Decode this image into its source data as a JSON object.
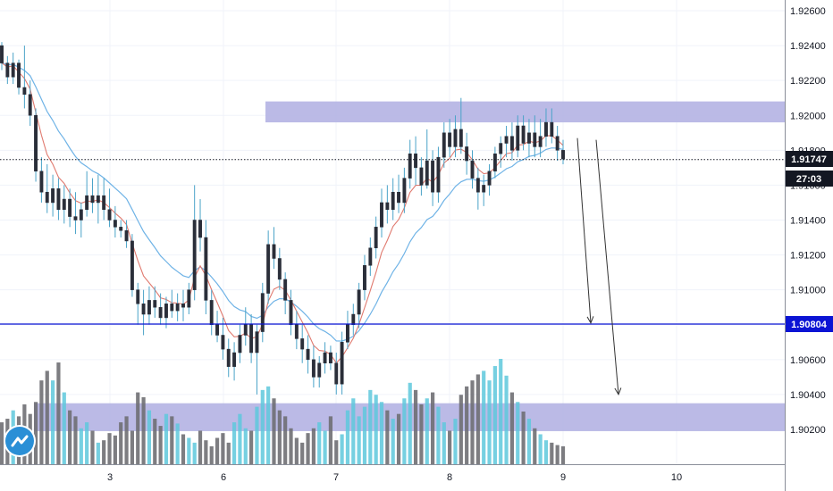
{
  "chart_data": {
    "type": "candlestick",
    "y_axis": {
      "ticks": [
        "1.92600",
        "1.92400",
        "1.92200",
        "1.92000",
        "1.91800",
        "1.91600",
        "1.91400",
        "1.91200",
        "1.91000",
        "1.90800",
        "1.90600",
        "1.90400",
        "1.90200"
      ],
      "range": [
        1.9001,
        1.9273
      ]
    },
    "x_axis": {
      "ticks": [
        "3",
        "6",
        "7",
        "8",
        "9",
        "10"
      ]
    },
    "price_marker": {
      "value": "1.91747",
      "countdown": "27:03",
      "color": "#131722"
    },
    "level_marker": {
      "value": "1.90804",
      "color": "#0b14d4"
    },
    "zones": [
      {
        "from": 1.9196,
        "to": 1.9208,
        "start": "8",
        "color": "#b4b3e3"
      },
      {
        "from": 1.9019,
        "to": 1.9035,
        "start": "2",
        "color": "#b4b3e3"
      }
    ],
    "ohlc": [
      [
        1.924,
        1.9242,
        1.9226,
        1.923
      ],
      [
        1.923,
        1.9234,
        1.9218,
        1.9222
      ],
      [
        1.9222,
        1.9236,
        1.9218,
        1.923
      ],
      [
        1.923,
        1.9232,
        1.9212,
        1.9216
      ],
      [
        1.9216,
        1.924,
        1.9204,
        1.9212
      ],
      [
        1.9212,
        1.922,
        1.9194,
        1.92
      ],
      [
        1.92,
        1.9204,
        1.9162,
        1.9168
      ],
      [
        1.9168,
        1.9176,
        1.915,
        1.9156
      ],
      [
        1.9156,
        1.9172,
        1.9144,
        1.915
      ],
      [
        1.915,
        1.9166,
        1.9142,
        1.9158
      ],
      [
        1.9158,
        1.9164,
        1.914,
        1.9146
      ],
      [
        1.9146,
        1.916,
        1.9138,
        1.9152
      ],
      [
        1.9152,
        1.9158,
        1.9136,
        1.9142
      ],
      [
        1.9142,
        1.9156,
        1.9132,
        1.914
      ],
      [
        1.914,
        1.915,
        1.913,
        1.9146
      ],
      [
        1.9146,
        1.9168,
        1.9142,
        1.9154
      ],
      [
        1.9154,
        1.9164,
        1.9144,
        1.915
      ],
      [
        1.915,
        1.9166,
        1.9138,
        1.9154
      ],
      [
        1.9154,
        1.9164,
        1.914,
        1.9146
      ],
      [
        1.9146,
        1.9158,
        1.9136,
        1.914
      ],
      [
        1.914,
        1.9148,
        1.913,
        1.9136
      ],
      [
        1.9136,
        1.914,
        1.913,
        1.9134
      ],
      [
        1.9134,
        1.914,
        1.9124,
        1.9128
      ],
      [
        1.9128,
        1.9132,
        1.9096,
        1.91
      ],
      [
        1.91,
        1.9104,
        1.908,
        1.9092
      ],
      [
        1.9092,
        1.91,
        1.9074,
        1.9086
      ],
      [
        1.9086,
        1.9102,
        1.908,
        1.9094
      ],
      [
        1.9094,
        1.9102,
        1.9084,
        1.909
      ],
      [
        1.909,
        1.9098,
        1.908,
        1.9084
      ],
      [
        1.9084,
        1.9096,
        1.9078,
        1.9092
      ],
      [
        1.9092,
        1.91,
        1.9084,
        1.9088
      ],
      [
        1.9088,
        1.9098,
        1.9082,
        1.9092
      ],
      [
        1.9092,
        1.91,
        1.9082,
        1.909
      ],
      [
        1.909,
        1.9104,
        1.9086,
        1.91
      ],
      [
        1.91,
        1.916,
        1.9094,
        1.914
      ],
      [
        1.914,
        1.9152,
        1.9122,
        1.913
      ],
      [
        1.913,
        1.914,
        1.9086,
        1.9094
      ],
      [
        1.9094,
        1.91,
        1.9074,
        1.908
      ],
      [
        1.908,
        1.9088,
        1.907,
        1.9074
      ],
      [
        1.9074,
        1.9084,
        1.906,
        1.9066
      ],
      [
        1.9066,
        1.9072,
        1.905,
        1.9056
      ],
      [
        1.9056,
        1.907,
        1.9048,
        1.9064
      ],
      [
        1.9064,
        1.908,
        1.9058,
        1.9074
      ],
      [
        1.9074,
        1.909,
        1.9068,
        1.908
      ],
      [
        1.908,
        1.9086,
        1.9058,
        1.9064
      ],
      [
        1.9064,
        1.908,
        1.904,
        1.9076
      ],
      [
        1.9076,
        1.9104,
        1.907,
        1.9098
      ],
      [
        1.9098,
        1.9134,
        1.9092,
        1.9126
      ],
      [
        1.9126,
        1.9136,
        1.9112,
        1.9118
      ],
      [
        1.9118,
        1.9124,
        1.91,
        1.9106
      ],
      [
        1.9106,
        1.911,
        1.9086,
        1.9094
      ],
      [
        1.9094,
        1.91,
        1.9074,
        1.908
      ],
      [
        1.908,
        1.9088,
        1.9066,
        1.9072
      ],
      [
        1.9072,
        1.908,
        1.9058,
        1.9066
      ],
      [
        1.9066,
        1.9074,
        1.9052,
        1.906
      ],
      [
        1.906,
        1.9068,
        1.9044,
        1.905
      ],
      [
        1.905,
        1.9062,
        1.9044,
        1.9058
      ],
      [
        1.9058,
        1.907,
        1.9052,
        1.9064
      ],
      [
        1.9064,
        1.9068,
        1.9054,
        1.9058
      ],
      [
        1.9058,
        1.9064,
        1.904,
        1.9046
      ],
      [
        1.9046,
        1.9076,
        1.904,
        1.907
      ],
      [
        1.907,
        1.9088,
        1.9066,
        1.908
      ],
      [
        1.908,
        1.9092,
        1.9074,
        1.9086
      ],
      [
        1.9086,
        1.9104,
        1.9078,
        1.91
      ],
      [
        1.91,
        1.912,
        1.9094,
        1.9114
      ],
      [
        1.9114,
        1.913,
        1.9108,
        1.9124
      ],
      [
        1.9124,
        1.9142,
        1.9118,
        1.9136
      ],
      [
        1.9136,
        1.9158,
        1.913,
        1.915
      ],
      [
        1.915,
        1.916,
        1.9138,
        1.9146
      ],
      [
        1.9146,
        1.9164,
        1.914,
        1.9156
      ],
      [
        1.9156,
        1.9166,
        1.9144,
        1.915
      ],
      [
        1.915,
        1.917,
        1.9144,
        1.9164
      ],
      [
        1.9164,
        1.9186,
        1.9158,
        1.9178
      ],
      [
        1.9178,
        1.9188,
        1.916,
        1.917
      ],
      [
        1.917,
        1.9176,
        1.9154,
        1.916
      ],
      [
        1.916,
        1.9192,
        1.9158,
        1.9174
      ],
      [
        1.9174,
        1.918,
        1.9148,
        1.9156
      ],
      [
        1.9156,
        1.9182,
        1.915,
        1.9176
      ],
      [
        1.9176,
        1.9196,
        1.917,
        1.919
      ],
      [
        1.919,
        1.9198,
        1.9176,
        1.9182
      ],
      [
        1.9182,
        1.92,
        1.9176,
        1.9192
      ],
      [
        1.9192,
        1.921,
        1.9178,
        1.9182
      ],
      [
        1.9182,
        1.919,
        1.9166,
        1.9174
      ],
      [
        1.9174,
        1.918,
        1.9158,
        1.9164
      ],
      [
        1.9164,
        1.917,
        1.9146,
        1.9156
      ],
      [
        1.9156,
        1.9166,
        1.9148,
        1.916
      ],
      [
        1.916,
        1.9172,
        1.9154,
        1.9168
      ],
      [
        1.9168,
        1.9182,
        1.9164,
        1.9178
      ],
      [
        1.9178,
        1.9188,
        1.917,
        1.9184
      ],
      [
        1.9184,
        1.9194,
        1.9176,
        1.9188
      ],
      [
        1.9188,
        1.9196,
        1.9174,
        1.918
      ],
      [
        1.918,
        1.92,
        1.9176,
        1.9194
      ],
      [
        1.9194,
        1.92,
        1.918,
        1.9184
      ],
      [
        1.9184,
        1.9198,
        1.9176,
        1.919
      ],
      [
        1.919,
        1.92,
        1.9176,
        1.9182
      ],
      [
        1.9182,
        1.9198,
        1.9176,
        1.9188
      ],
      [
        1.9188,
        1.9204,
        1.9182,
        1.9196
      ],
      [
        1.9196,
        1.9204,
        1.9184,
        1.9188
      ],
      [
        1.9188,
        1.9194,
        1.9174,
        1.918
      ],
      [
        1.918,
        1.9186,
        1.9172,
        1.9175
      ]
    ],
    "volume": [
      35,
      38,
      45,
      40,
      50,
      42,
      52,
      70,
      78,
      70,
      85,
      60,
      45,
      40,
      30,
      35,
      28,
      18,
      20,
      26,
      24,
      35,
      40,
      28,
      60,
      56,
      45,
      38,
      32,
      42,
      40,
      34,
      25,
      22,
      18,
      28,
      20,
      15,
      22,
      26,
      18,
      35,
      42,
      30,
      28,
      48,
      62,
      65,
      55,
      45,
      40,
      30,
      22,
      18,
      26,
      30,
      35,
      28,
      40,
      20,
      25,
      45,
      55,
      40,
      48,
      62,
      58,
      52,
      45,
      38,
      42,
      55,
      68,
      62,
      50,
      55,
      60,
      48,
      35,
      28,
      38,
      58,
      65,
      70,
      75,
      78,
      70,
      82,
      88,
      74,
      60,
      52,
      44,
      38,
      30,
      25,
      20,
      18,
      16,
      15
    ],
    "arrows": [
      {
        "from": 1.9187,
        "to": 1.9081
      },
      {
        "from": 1.9186,
        "to": 1.904
      }
    ]
  }
}
